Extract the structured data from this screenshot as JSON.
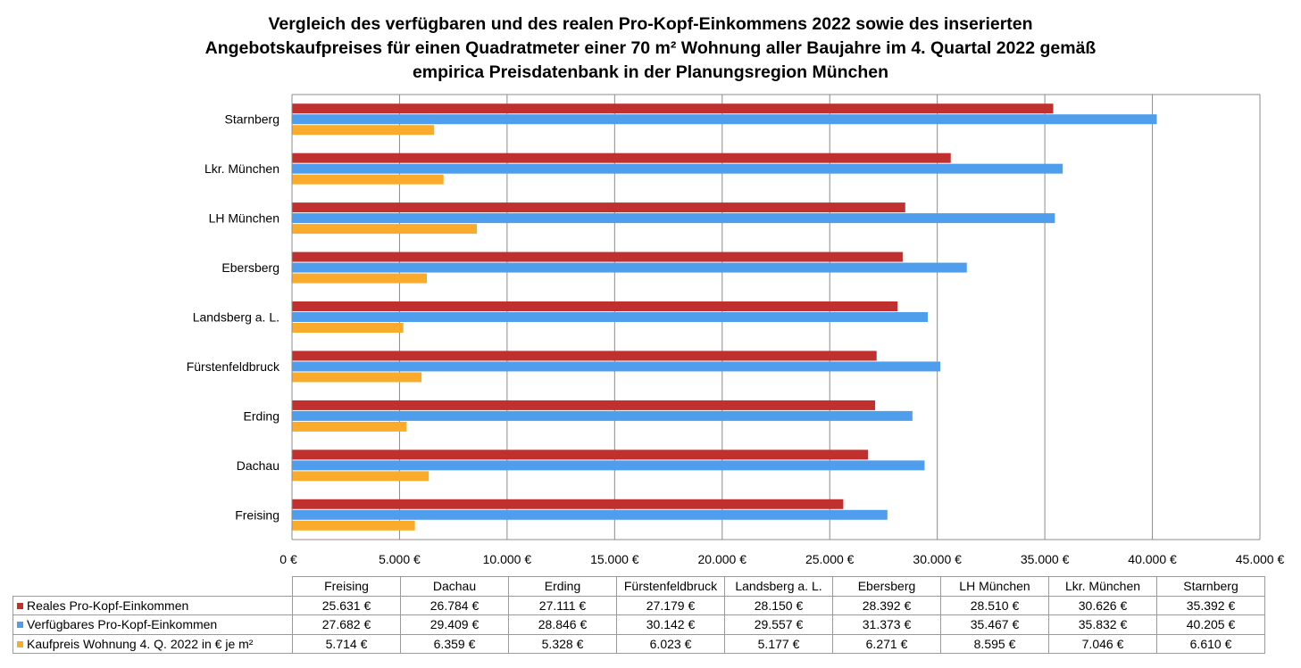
{
  "title_lines": [
    "Vergleich des verfügbaren und des realen Pro-Kopf-Einkommens 2022 sowie des inserierten",
    "Angebotskaufpreises für einen Quadratmeter einer 70 m² Wohnung aller Baujahre im 4. Quartal 2022 gemäß",
    "empirica Preisdatenbank in der Planungsregion München"
  ],
  "chart_data": {
    "type": "bar",
    "orientation": "horizontal",
    "title": "Vergleich des verfügbaren und des realen Pro-Kopf-Einkommens 2022 sowie des inserierten Angebotskaufpreises für einen Quadratmeter einer 70 m² Wohnung aller Baujahre im 4. Quartal 2022 gemäß empirica Preisdatenbank in der Planungsregion München",
    "categories": [
      "Freising",
      "Dachau",
      "Erding",
      "Fürstenfeldbruck",
      "Landsberg a. L.",
      "Ebersberg",
      "LH München",
      "Lkr.  München",
      "Starnberg"
    ],
    "series": [
      {
        "name": "Reales Pro-Kopf-Einkommen",
        "color": "#c0302e",
        "values": [
          25631,
          26784,
          27111,
          27179,
          28150,
          28392,
          28510,
          30626,
          35392
        ],
        "labels": [
          "25.631 €",
          "26.784 €",
          "27.111 €",
          "27.179 €",
          "28.150 €",
          "28.392 €",
          "28.510 €",
          "30.626 €",
          "35.392 €"
        ]
      },
      {
        "name": "Verfügbares Pro-Kopf-Einkommen",
        "color": "#4f9ded",
        "values": [
          27682,
          29409,
          28846,
          30142,
          29557,
          31373,
          35467,
          35832,
          40205
        ],
        "labels": [
          "27.682 €",
          "29.409 €",
          "28.846 €",
          "30.142 €",
          "29.557 €",
          "31.373 €",
          "35.467 €",
          "35.832 €",
          "40.205 €"
        ]
      },
      {
        "name": "Kaufpreis Wohnung 4. Q. 2022 in € je m²",
        "color": "#fbab2c",
        "values": [
          5714,
          6359,
          5328,
          6023,
          5177,
          6271,
          8595,
          7046,
          6610
        ],
        "labels": [
          "5.714 €",
          "6.359 €",
          "5.328 €",
          "6.023 €",
          "5.177 €",
          "6.271 €",
          "8.595 €",
          "7.046 €",
          "6.610 €"
        ]
      }
    ],
    "xlim": [
      0,
      45000
    ],
    "xticks": [
      0,
      5000,
      10000,
      15000,
      20000,
      25000,
      30000,
      35000,
      40000,
      45000
    ],
    "xtick_labels": [
      "0 €",
      "5.000 €",
      "10.000 €",
      "15.000 €",
      "20.000 €",
      "25.000 €",
      "30.000 €",
      "35.000 €",
      "40.000 €",
      "45.000 €"
    ],
    "grid": "vertical",
    "legend": "data table below chart"
  }
}
